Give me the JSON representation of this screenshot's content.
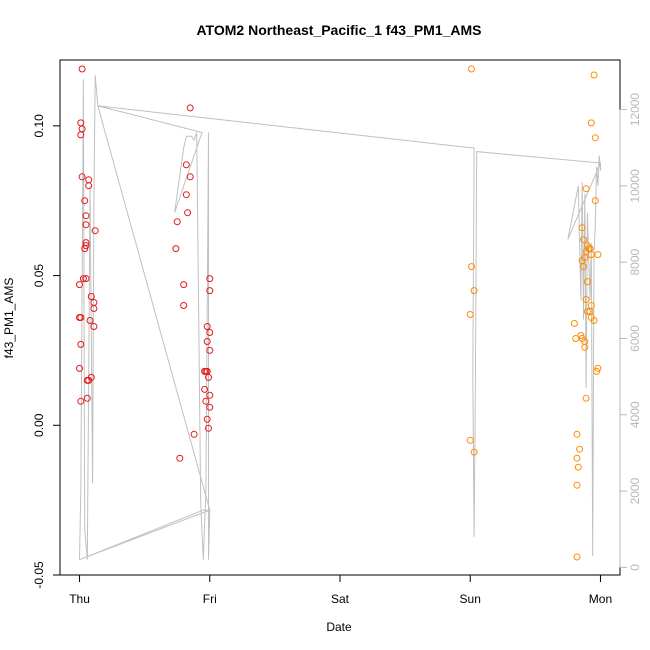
{
  "chart_data": {
    "type": "scatter",
    "title": "ATOM2 Northeast_Pacific_1 f43_PM1_AMS",
    "xlabel": "Date",
    "ylabel": "f43_PM1_AMS",
    "x_unit": "days",
    "xlim": [
      -0.15,
      4.15
    ],
    "ylim": [
      -0.05,
      0.122
    ],
    "ylim_right": [
      -200,
      13300
    ],
    "x_ticks": [
      {
        "value": 0,
        "label": "Thu"
      },
      {
        "value": 1,
        "label": "Fri"
      },
      {
        "value": 2,
        "label": "Sat"
      },
      {
        "value": 3,
        "label": "Sun"
      },
      {
        "value": 4,
        "label": "Mon"
      }
    ],
    "y_ticks": [
      {
        "value": -0.05,
        "label": "-0.05"
      },
      {
        "value": 0.0,
        "label": "0.00"
      },
      {
        "value": 0.05,
        "label": "0.05"
      },
      {
        "value": 0.1,
        "label": "0.10"
      }
    ],
    "y_right_ticks": [
      {
        "value": 0,
        "label": "0"
      },
      {
        "value": 2000,
        "label": "2000"
      },
      {
        "value": 4000,
        "label": "4000"
      },
      {
        "value": 6000,
        "label": "6000"
      },
      {
        "value": 8000,
        "label": "8000"
      },
      {
        "value": 10000,
        "label": "10000"
      },
      {
        "value": 12000,
        "label": "12000"
      }
    ],
    "colors": {
      "red_series": "#e41a1c",
      "orange_series": "#ff8c00",
      "line_series": "#c0c0c0",
      "axis": "#000000",
      "right_axis": "#b9b9b9"
    },
    "series": [
      {
        "type": "scatter",
        "color": "#e41a1c",
        "points": [
          [
            0.02,
            0.119
          ],
          [
            0.01,
            0.101
          ],
          [
            0.02,
            0.099
          ],
          [
            0.01,
            0.097
          ],
          [
            0.02,
            0.083
          ],
          [
            0.07,
            0.082
          ],
          [
            0.07,
            0.08
          ],
          [
            0.04,
            0.075
          ],
          [
            0.05,
            0.07
          ],
          [
            0.05,
            0.067
          ],
          [
            0.12,
            0.065
          ],
          [
            0.05,
            0.061
          ],
          [
            0.04,
            0.059
          ],
          [
            0.05,
            0.06
          ],
          [
            0.03,
            0.049
          ],
          [
            0.05,
            0.049
          ],
          [
            0.0,
            0.047
          ],
          [
            0.09,
            0.043
          ],
          [
            0.11,
            0.041
          ],
          [
            0.11,
            0.039
          ],
          [
            0.0,
            0.036
          ],
          [
            0.01,
            0.036
          ],
          [
            0.08,
            0.035
          ],
          [
            0.11,
            0.033
          ],
          [
            0.01,
            0.027
          ],
          [
            0.0,
            0.019
          ],
          [
            0.06,
            0.015
          ],
          [
            0.07,
            0.015
          ],
          [
            0.09,
            0.016
          ],
          [
            0.01,
            0.008
          ],
          [
            0.06,
            0.009
          ],
          [
            0.85,
            0.106
          ],
          [
            0.82,
            0.087
          ],
          [
            0.85,
            0.083
          ],
          [
            0.82,
            0.077
          ],
          [
            0.83,
            0.071
          ],
          [
            0.75,
            0.068
          ],
          [
            0.74,
            0.059
          ],
          [
            1.0,
            0.049
          ],
          [
            0.8,
            0.047
          ],
          [
            1.0,
            0.045
          ],
          [
            0.8,
            0.04
          ],
          [
            0.98,
            0.033
          ],
          [
            1.0,
            0.031
          ],
          [
            0.98,
            0.028
          ],
          [
            1.0,
            0.025
          ],
          [
            0.96,
            0.018
          ],
          [
            0.97,
            0.018
          ],
          [
            0.98,
            0.018
          ],
          [
            0.99,
            0.016
          ],
          [
            0.96,
            0.012
          ],
          [
            1.0,
            0.01
          ],
          [
            0.97,
            0.008
          ],
          [
            1.0,
            0.006
          ],
          [
            0.98,
            0.002
          ],
          [
            0.99,
            -0.001
          ],
          [
            0.88,
            -0.003
          ],
          [
            0.77,
            -0.011
          ]
        ]
      },
      {
        "type": "scatter",
        "color": "#ff8c00",
        "points": [
          [
            3.01,
            0.119
          ],
          [
            3.01,
            0.053
          ],
          [
            3.03,
            0.045
          ],
          [
            3.0,
            0.037
          ],
          [
            3.0,
            -0.005
          ],
          [
            3.03,
            -0.009
          ],
          [
            3.95,
            0.117
          ],
          [
            3.93,
            0.101
          ],
          [
            3.96,
            0.096
          ],
          [
            3.89,
            0.079
          ],
          [
            3.96,
            0.075
          ],
          [
            3.86,
            0.066
          ],
          [
            3.87,
            0.062
          ],
          [
            3.9,
            0.06
          ],
          [
            3.91,
            0.059
          ],
          [
            3.92,
            0.059
          ],
          [
            3.89,
            0.058
          ],
          [
            3.93,
            0.057
          ],
          [
            3.98,
            0.057
          ],
          [
            3.88,
            0.056
          ],
          [
            3.86,
            0.055
          ],
          [
            3.87,
            0.053
          ],
          [
            3.9,
            0.048
          ],
          [
            3.89,
            0.042
          ],
          [
            3.93,
            0.04
          ],
          [
            3.9,
            0.038
          ],
          [
            3.92,
            0.038
          ],
          [
            3.93,
            0.036
          ],
          [
            3.95,
            0.035
          ],
          [
            3.8,
            0.034
          ],
          [
            3.85,
            0.03
          ],
          [
            3.81,
            0.029
          ],
          [
            3.86,
            0.029
          ],
          [
            3.88,
            0.028
          ],
          [
            3.88,
            0.026
          ],
          [
            3.98,
            0.019
          ],
          [
            3.97,
            0.018
          ],
          [
            3.89,
            0.009
          ],
          [
            3.82,
            -0.003
          ],
          [
            3.84,
            -0.008
          ],
          [
            3.82,
            -0.011
          ],
          [
            3.83,
            -0.014
          ],
          [
            3.82,
            -0.02
          ],
          [
            3.82,
            -0.044
          ]
        ]
      },
      {
        "type": "line",
        "axis": "right",
        "color": "#c0c0c0",
        "points": [
          [
            0.0,
            200
          ],
          [
            0.01,
            2000
          ],
          [
            0.03,
            12800
          ],
          [
            0.04,
            1000
          ],
          [
            0.06,
            200
          ],
          [
            0.07,
            5000
          ],
          [
            0.08,
            10000
          ],
          [
            0.1,
            2200
          ],
          [
            0.11,
            9600
          ],
          [
            0.12,
            12900
          ],
          [
            0.13,
            12500
          ],
          [
            0.14,
            12100
          ],
          [
            0.94,
            11400
          ],
          [
            0.73,
            9300
          ],
          [
            0.8,
            11000
          ],
          [
            0.82,
            11300
          ],
          [
            0.86,
            11300
          ],
          [
            0.88,
            11200
          ],
          [
            0.9,
            11400
          ],
          [
            0.93,
            1700
          ],
          [
            0.95,
            200
          ],
          [
            0.97,
            2000
          ],
          [
            0.99,
            11400
          ],
          [
            0.99,
            200
          ],
          [
            1.0,
            1500
          ],
          [
            0.0,
            200
          ],
          [
            0.95,
            1500
          ],
          [
            1.0,
            1500
          ],
          [
            0.14,
            12100
          ],
          [
            3.0,
            11000
          ],
          [
            3.03,
            11000
          ],
          [
            3.02,
            5000
          ],
          [
            3.03,
            800
          ],
          [
            3.04,
            4800
          ],
          [
            3.05,
            10900
          ],
          [
            4.0,
            10600
          ],
          [
            3.75,
            8600
          ],
          [
            3.83,
            10000
          ],
          [
            3.85,
            7000
          ],
          [
            3.86,
            10100
          ],
          [
            3.87,
            6500
          ],
          [
            3.88,
            9800
          ],
          [
            3.89,
            4700
          ],
          [
            3.9,
            9300
          ],
          [
            3.92,
            7000
          ],
          [
            3.93,
            8500
          ],
          [
            3.94,
            300
          ],
          [
            3.95,
            8200
          ],
          [
            3.96,
            9000
          ],
          [
            3.97,
            10500
          ],
          [
            3.98,
            10000
          ],
          [
            3.99,
            10800
          ],
          [
            4.0,
            10400
          ],
          [
            4.0,
            10600
          ]
        ]
      }
    ]
  }
}
